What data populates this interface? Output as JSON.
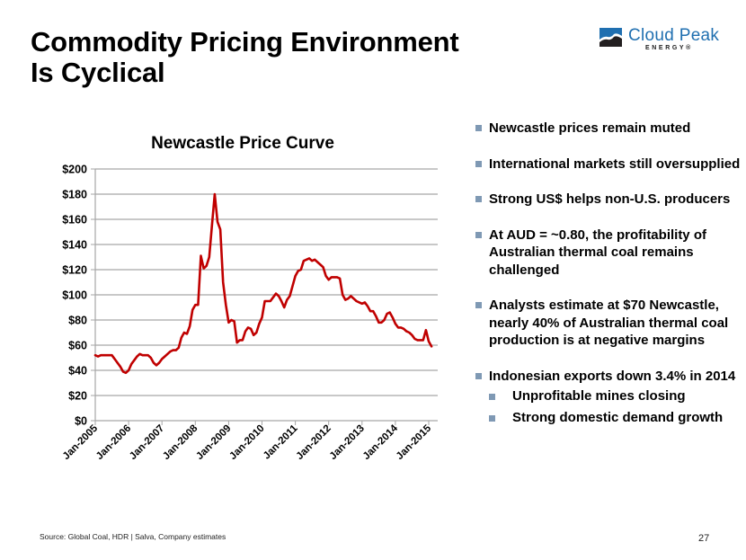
{
  "slide": {
    "title_line1": "Commodity Pricing Environment",
    "title_line2": "Is Cyclical",
    "logo": {
      "name": "Cloud Peak",
      "sub": "ENERGY®",
      "brand_color": "#1f6fb0"
    },
    "bullets": [
      {
        "text": "Newcastle prices remain muted",
        "level": 1
      },
      {
        "text": "International markets still oversupplied",
        "level": 1
      },
      {
        "text": "Strong US$ helps non-U.S. producers",
        "level": 1
      },
      {
        "text": "At AUD = ~0.80, the profitability of  Australian thermal coal remains challenged",
        "level": 1
      },
      {
        "text": "Analysts estimate at $70 Newcastle, nearly 40% of Australian thermal coal production is at negative margins",
        "level": 1
      },
      {
        "text": "Indonesian exports down 3.4% in 2014",
        "level": 1
      },
      {
        "text": "Unprofitable mines closing",
        "level": 2
      },
      {
        "text": "Strong domestic demand growth",
        "level": 2
      }
    ],
    "source": "Source:  Global Coal, HDR | Salva, Company estimates",
    "page_number": "27"
  },
  "chart_data": {
    "type": "line",
    "title": "Newcastle Price Curve",
    "xlabel": "",
    "ylabel": "",
    "ylim": [
      0,
      200
    ],
    "yticks": [
      0,
      20,
      40,
      60,
      80,
      100,
      120,
      140,
      160,
      180,
      200
    ],
    "ytick_labels": [
      "$0",
      "$20",
      "$40",
      "$60",
      "$80",
      "$100",
      "$120",
      "$140",
      "$160",
      "$180",
      "$200"
    ],
    "xtick_labels": [
      "Jan-2005",
      "Jan-2006",
      "Jan-2007",
      "Jan-2008",
      "Jan-2009",
      "Jan-2010",
      "Jan-2011",
      "Jan-2012",
      "Jan-2013",
      "Jan-2014",
      "Jan-2015"
    ],
    "grid": true,
    "legend": "none",
    "line_color": "#c00000",
    "series": [
      {
        "name": "Newcastle",
        "x_start": "Jan-2005",
        "interval": "month",
        "values": [
          52,
          51,
          52,
          52,
          52,
          52,
          52,
          49,
          46,
          43,
          39,
          38,
          40,
          45,
          48,
          51,
          53,
          52,
          52,
          52,
          50,
          46,
          44,
          46,
          49,
          51,
          53,
          55,
          56,
          56,
          58,
          66,
          70,
          69,
          75,
          88,
          92,
          92,
          131,
          121,
          123,
          130,
          155,
          180,
          158,
          152,
          110,
          92,
          78,
          80,
          79,
          62,
          64,
          64,
          71,
          74,
          73,
          68,
          70,
          77,
          82,
          95,
          95,
          95,
          98,
          101,
          99,
          95,
          90,
          96,
          99,
          107,
          115,
          119,
          120,
          127,
          128,
          129,
          127,
          128,
          126,
          124,
          122,
          115,
          112,
          114,
          114,
          114,
          113,
          100,
          96,
          97,
          99,
          97,
          95,
          94,
          93,
          94,
          91,
          87,
          87,
          83,
          78,
          78,
          80,
          85,
          86,
          82,
          77,
          74,
          74,
          73,
          71,
          70,
          68,
          65,
          64,
          64,
          64,
          72,
          63,
          59
        ]
      }
    ]
  }
}
